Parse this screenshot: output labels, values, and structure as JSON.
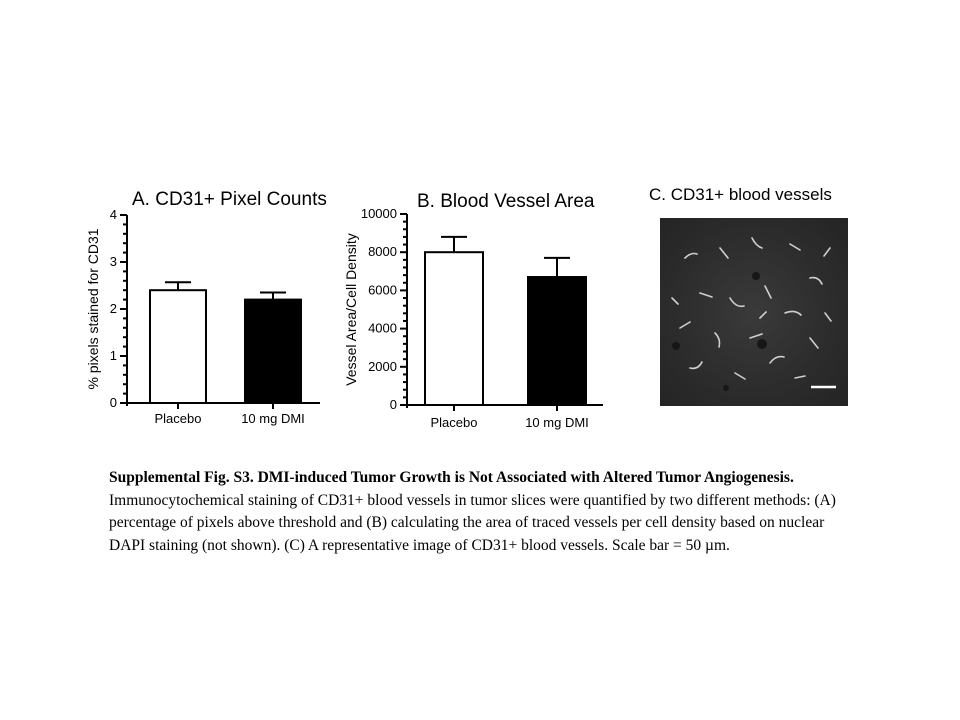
{
  "chart_data": [
    {
      "type": "bar",
      "title": "A. CD31+ Pixel Counts",
      "xlabel": "",
      "ylabel": "% pixels stained for CD31",
      "categories": [
        "Placebo",
        "10 mg DMI"
      ],
      "values": [
        2.4,
        2.2
      ],
      "errors": [
        0.17,
        0.15
      ],
      "bar_fills": [
        "#ffffff",
        "#000000"
      ],
      "ylim": [
        0,
        4
      ],
      "yticks": [
        0,
        1,
        2,
        3,
        4
      ],
      "ytick_labels": [
        "0",
        "1",
        "2",
        "3",
        "4"
      ],
      "minor_ticks_per_major": 4,
      "grid": false
    },
    {
      "type": "bar",
      "title": "B. Blood Vessel Area",
      "xlabel": "",
      "ylabel": "Vessel Area/Cell Density",
      "categories": [
        "Placebo",
        "10 mg DMI"
      ],
      "values": [
        8000,
        6700
      ],
      "errors": [
        800,
        1000
      ],
      "bar_fills": [
        "#ffffff",
        "#000000"
      ],
      "ylim": [
        0,
        10000
      ],
      "yticks": [
        0,
        2000,
        4000,
        6000,
        8000,
        10000
      ],
      "ytick_labels": [
        "0",
        "2000",
        "4000",
        "6000",
        "8000",
        "10000"
      ],
      "minor_ticks_per_major": 4,
      "grid": false
    }
  ],
  "panel_c": {
    "title": "C. CD31+ blood vessels"
  },
  "caption": {
    "bold": "Supplemental Fig. S3. DMI-induced Tumor Growth is Not Associated with Altered Tumor Angiogenesis.",
    "text": " Immunocytochemical staining of CD31+ blood vessels in tumor slices were quantified by two different methods: (A) percentage of pixels above threshold and (B) calculating the area of traced vessels per cell density based on nuclear DAPI staining (not shown). (C) A representative image of CD31+ blood vessels. Scale bar = 50 µm."
  }
}
